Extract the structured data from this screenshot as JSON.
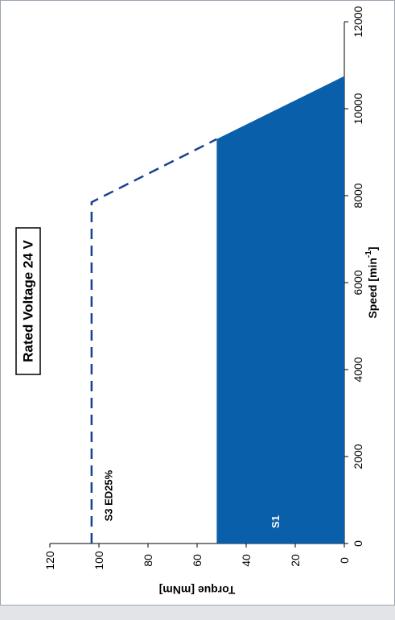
{
  "chart_data": {
    "type": "area",
    "orientation": "rotated-90-ccw",
    "title": "Rated Voltage 24 V",
    "xlabel": "Speed [min⁻¹]",
    "xlabel_text": "Speed [min",
    "xlabel_sup": "-1",
    "xlabel_end": "]",
    "ylabel": "Torque [mNm]",
    "xlim": [
      0,
      12000
    ],
    "ylim": [
      0,
      120
    ],
    "x_ticks": [
      "0",
      "2000",
      "4000",
      "6000",
      "8000",
      "10000",
      "12000"
    ],
    "y_ticks": [
      "0",
      "20",
      "40",
      "60",
      "80",
      "100",
      "120"
    ],
    "grid": false,
    "series": [
      {
        "name": "S1",
        "style": "filled-area",
        "color": "#0a5fab",
        "x": [
          0,
          9300,
          10750
        ],
        "y": [
          52,
          52,
          0
        ]
      },
      {
        "name": "S3 ED25%",
        "style": "dashed-line",
        "color": "#1f3f93",
        "x": [
          0,
          7850,
          9300
        ],
        "y": [
          103,
          103,
          52
        ]
      }
    ]
  }
}
